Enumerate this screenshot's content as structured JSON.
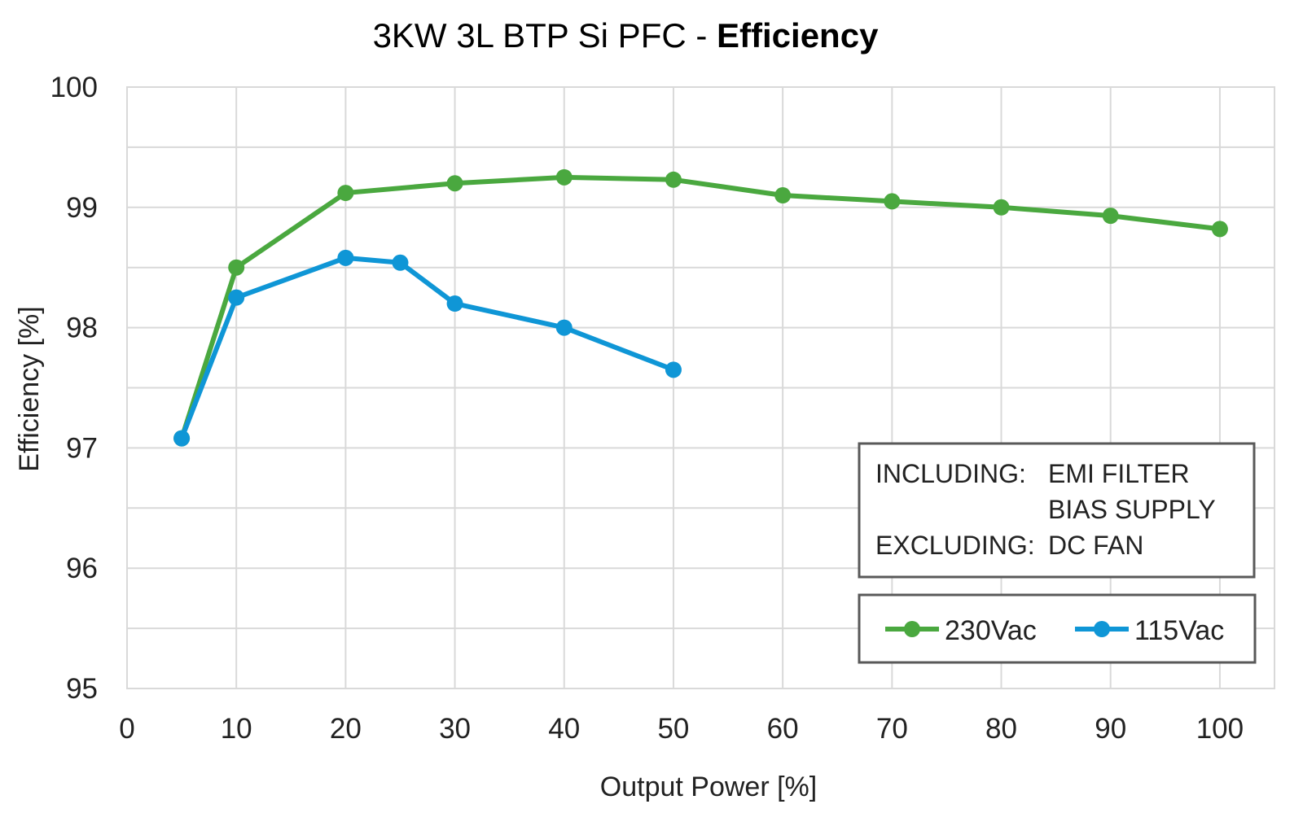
{
  "chart_data": {
    "type": "line",
    "title_prefix": "3KW 3L BTP Si PFC - ",
    "title_emphasis": "Efficiency",
    "xlabel": "Output Power [%]",
    "ylabel": "Efficiency [%]",
    "xlim": [
      0,
      105
    ],
    "ylim": [
      95,
      100
    ],
    "xticks": [
      0,
      10,
      20,
      30,
      40,
      50,
      60,
      70,
      80,
      90,
      100
    ],
    "yticks": [
      95,
      96,
      97,
      98,
      99,
      100
    ],
    "grid": true,
    "legend_position": "bottom-right",
    "series": [
      {
        "name": "230Vac",
        "color": "#4aa83f",
        "x": [
          5,
          10,
          20,
          30,
          40,
          50,
          60,
          70,
          80,
          90,
          100
        ],
        "y": [
          97.08,
          98.5,
          99.12,
          99.2,
          99.25,
          99.23,
          99.1,
          99.05,
          99.0,
          98.93,
          98.82
        ]
      },
      {
        "name": "115Vac",
        "color": "#0f96d6",
        "x": [
          5,
          10,
          20,
          25,
          30,
          40,
          50
        ],
        "y": [
          97.08,
          98.25,
          98.58,
          98.54,
          98.2,
          98.0,
          97.65
        ]
      }
    ],
    "annotation": {
      "including_label": "INCLUDING:",
      "including_items": [
        "EMI FILTER",
        "BIAS SUPPLY"
      ],
      "excluding_label": "EXCLUDING:",
      "excluding_items": [
        "DC FAN"
      ]
    }
  }
}
